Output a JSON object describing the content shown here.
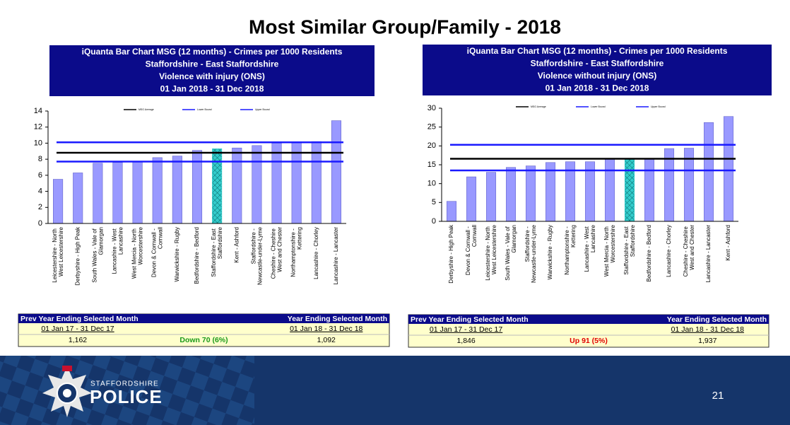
{
  "title": "Most Similar Group/Family - 2018",
  "chart_data": [
    {
      "type": "bar",
      "title_lines": [
        "iQuanta Bar Chart MSG (12 months) - Crimes per 1000 Residents",
        "Staffordshire - East Staffordshire",
        "Violence with injury (ONS)",
        "01 Jan 2018 - 31 Dec 2018"
      ],
      "categories": [
        "Leicestershire - North West Leicestershire",
        "Derbyshire - High Peak",
        "South Wales - Vale of Glamorgan",
        "Lancashire - West Lancashire",
        "West Mercia - North Worcestershire",
        "Devon & Cornwall - Cornwall",
        "Warwickshire - Rugby",
        "Bedfordshire - Bedford",
        "Staffordshire - East Staffordshire",
        "Kent - Ashford",
        "Staffordshire - Newcastle-under-Lyme",
        "Cheshire - Cheshire West and Chester",
        "Northamptonshire - Kettering",
        "Lancashire - Chorley",
        "Lancashire - Lancaster"
      ],
      "values": [
        5.5,
        6.3,
        7.5,
        7.6,
        7.7,
        8.2,
        8.4,
        9.1,
        9.3,
        9.4,
        9.7,
        10.0,
        10.1,
        10.2,
        12.8
      ],
      "color": "#9999ff",
      "highlight": "Staffordshire - East Staffordshire",
      "highlight_color": "#33cccc",
      "reference_lines": [
        {
          "name": "MSG Average",
          "color": "#000000",
          "value": 8.8
        },
        {
          "name": "Lower Bound",
          "color": "#1a1aff",
          "value": 7.7
        },
        {
          "name": "Upper Bound",
          "color": "#1a1aff",
          "value": 10.1
        }
      ],
      "ylim": [
        0,
        14
      ],
      "yticks": [
        0,
        2,
        4,
        6,
        8,
        10,
        12,
        14
      ]
    },
    {
      "type": "bar",
      "title_lines": [
        "iQuanta Bar Chart MSG (12 months) - Crimes per 1000 Residents",
        "Staffordshire - East Staffordshire",
        "Violence without injury (ONS)",
        "01 Jan 2018 - 31 Dec 2018"
      ],
      "categories": [
        "Derbyshire - High Peak",
        "Devon & Cornwall - Cornwall",
        "Leicestershire - North West Leicestershire",
        "South Wales - Vale of Glamorgan",
        "Staffordshire - Newcastle-under-Lyme",
        "Warwickshire - Rugby",
        "Northamptonshire - Kettering",
        "Lancashire - West Lancashire",
        "West Mercia - North Worcestershire",
        "Staffordshire - East Staffordshire",
        "Bedfordshire - Bedford",
        "Lancashire - Chorley",
        "Cheshire - Cheshire West and Chester",
        "Lancashire - Lancaster",
        "Kent - Ashford"
      ],
      "values": [
        5.3,
        11.8,
        13.0,
        14.3,
        14.7,
        15.6,
        15.8,
        15.8,
        16.5,
        16.5,
        16.6,
        19.3,
        19.4,
        26.2,
        27.8
      ],
      "color": "#9999ff",
      "highlight": "Staffordshire - East Staffordshire",
      "highlight_color": "#33cccc",
      "reference_lines": [
        {
          "name": "MSG Average",
          "color": "#000000",
          "value": 16.6
        },
        {
          "name": "Lower Bound",
          "color": "#1a1aff",
          "value": 13.5
        },
        {
          "name": "Upper Bound",
          "color": "#1a1aff",
          "value": 20.3
        }
      ],
      "ylim": [
        0,
        30
      ],
      "yticks": [
        0,
        5,
        10,
        15,
        20,
        25,
        30
      ]
    }
  ],
  "tables": [
    {
      "headers": [
        "Prev Year Ending Selected Month",
        "Year Ending Selected Month"
      ],
      "periods": [
        "01 Jan 17 - 31 Dec 17",
        "01 Jan 18 - 31 Dec 18"
      ],
      "prev": "1,162",
      "change": "Down 70 (6%)",
      "current": "1,092",
      "change_color": "#1a9a1a"
    },
    {
      "headers": [
        "Prev Year Ending Selected Month",
        "Year Ending Selected Month"
      ],
      "periods": [
        "01 Jan 17 - 31 Dec 17",
        "01 Jan 18 - 31 Dec 18"
      ],
      "prev": "1,846",
      "change": "Up 91 (5%)",
      "current": "1,937",
      "change_color": "#e00000"
    }
  ],
  "footer": {
    "org_top": "STAFFORDSHIRE",
    "org_main": "POLICE",
    "page": "21"
  }
}
